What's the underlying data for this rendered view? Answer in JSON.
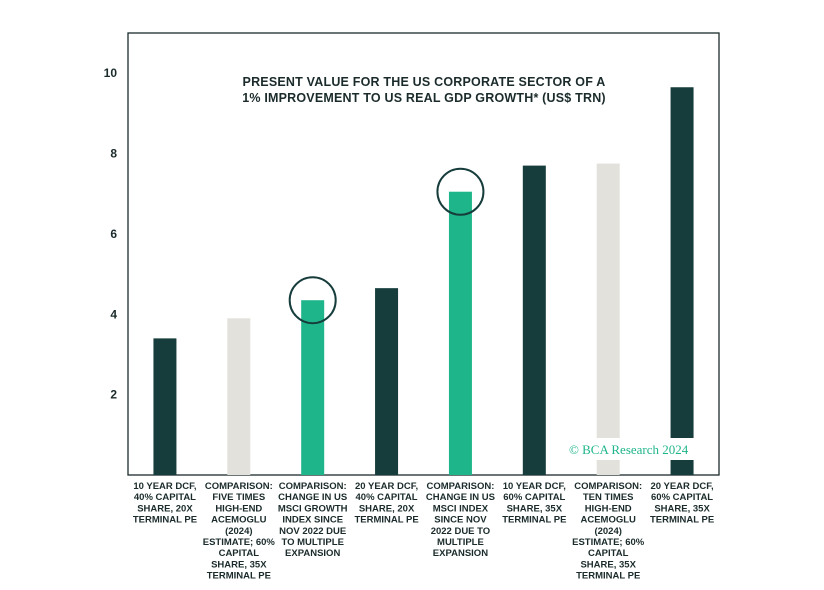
{
  "chart_data": {
    "type": "bar",
    "title_lines": [
      "PRESENT VALUE FOR THE US CORPORATE SECTOR OF A",
      "1% IMPROVEMENT TO US REAL GDP GROWTH* (US$ TRN)"
    ],
    "xlabel": "",
    "ylabel": "",
    "ylim": [
      0,
      11
    ],
    "yticks": [
      "2",
      "4",
      "6",
      "8",
      "10"
    ],
    "ytick_values": [
      2,
      4,
      6,
      8,
      10
    ],
    "grid": false,
    "categories": [
      [
        "10 YEAR DCF,",
        "40% CAPITAL",
        "SHARE, 20X",
        "TERMINAL PE"
      ],
      [
        "COMPARISON:",
        "FIVE TIMES",
        "HIGH-END",
        "ACEMOGLU",
        "(2024)",
        "ESTIMATE; 60%",
        "CAPITAL",
        "SHARE, 35X",
        "TERMINAL PE"
      ],
      [
        "COMPARISON:",
        "CHANGE IN US",
        "MSCI GROWTH",
        "INDEX SINCE",
        "NOV 2022 DUE",
        "TO MULTIPLE",
        "EXPANSION"
      ],
      [
        "20 YEAR DCF,",
        "40% CAPITAL",
        "SHARE, 20X",
        "TERMINAL PE"
      ],
      [
        "COMPARISON:",
        "CHANGE IN US",
        "MSCI INDEX",
        "SINCE NOV",
        "2022 DUE TO",
        "MULTIPLE",
        "EXPANSION"
      ],
      [
        "10 YEAR DCF,",
        "60% CAPITAL",
        "SHARE, 35X",
        "TERMINAL PE"
      ],
      [
        "COMPARISON:",
        "TEN TIMES",
        "HIGH-END",
        "ACEMOGLU",
        "(2024)",
        "ESTIMATE; 60%",
        "CAPITAL",
        "SHARE, 35X",
        "TERMINAL PE"
      ],
      [
        "20 YEAR DCF,",
        "60% CAPITAL",
        "SHARE, 35X",
        "TERMINAL PE"
      ]
    ],
    "values": [
      3.4,
      3.9,
      4.35,
      4.65,
      7.05,
      7.7,
      7.75,
      9.65
    ],
    "bar_kinds": [
      "dcf",
      "acemoglu",
      "msci",
      "dcf",
      "msci",
      "dcf",
      "acemoglu",
      "dcf"
    ],
    "circled": [
      false,
      false,
      true,
      false,
      true,
      false,
      false,
      false
    ],
    "colors": {
      "dcf": "#163c3b",
      "acemoglu": "#e3e1dc",
      "msci": "#1fb58a",
      "circle": "#163c3b",
      "axis": "#1b2b2b",
      "text": "#1b2b2b",
      "copyright": "#1fb58a"
    },
    "copyright": "© BCA Research 2024"
  }
}
